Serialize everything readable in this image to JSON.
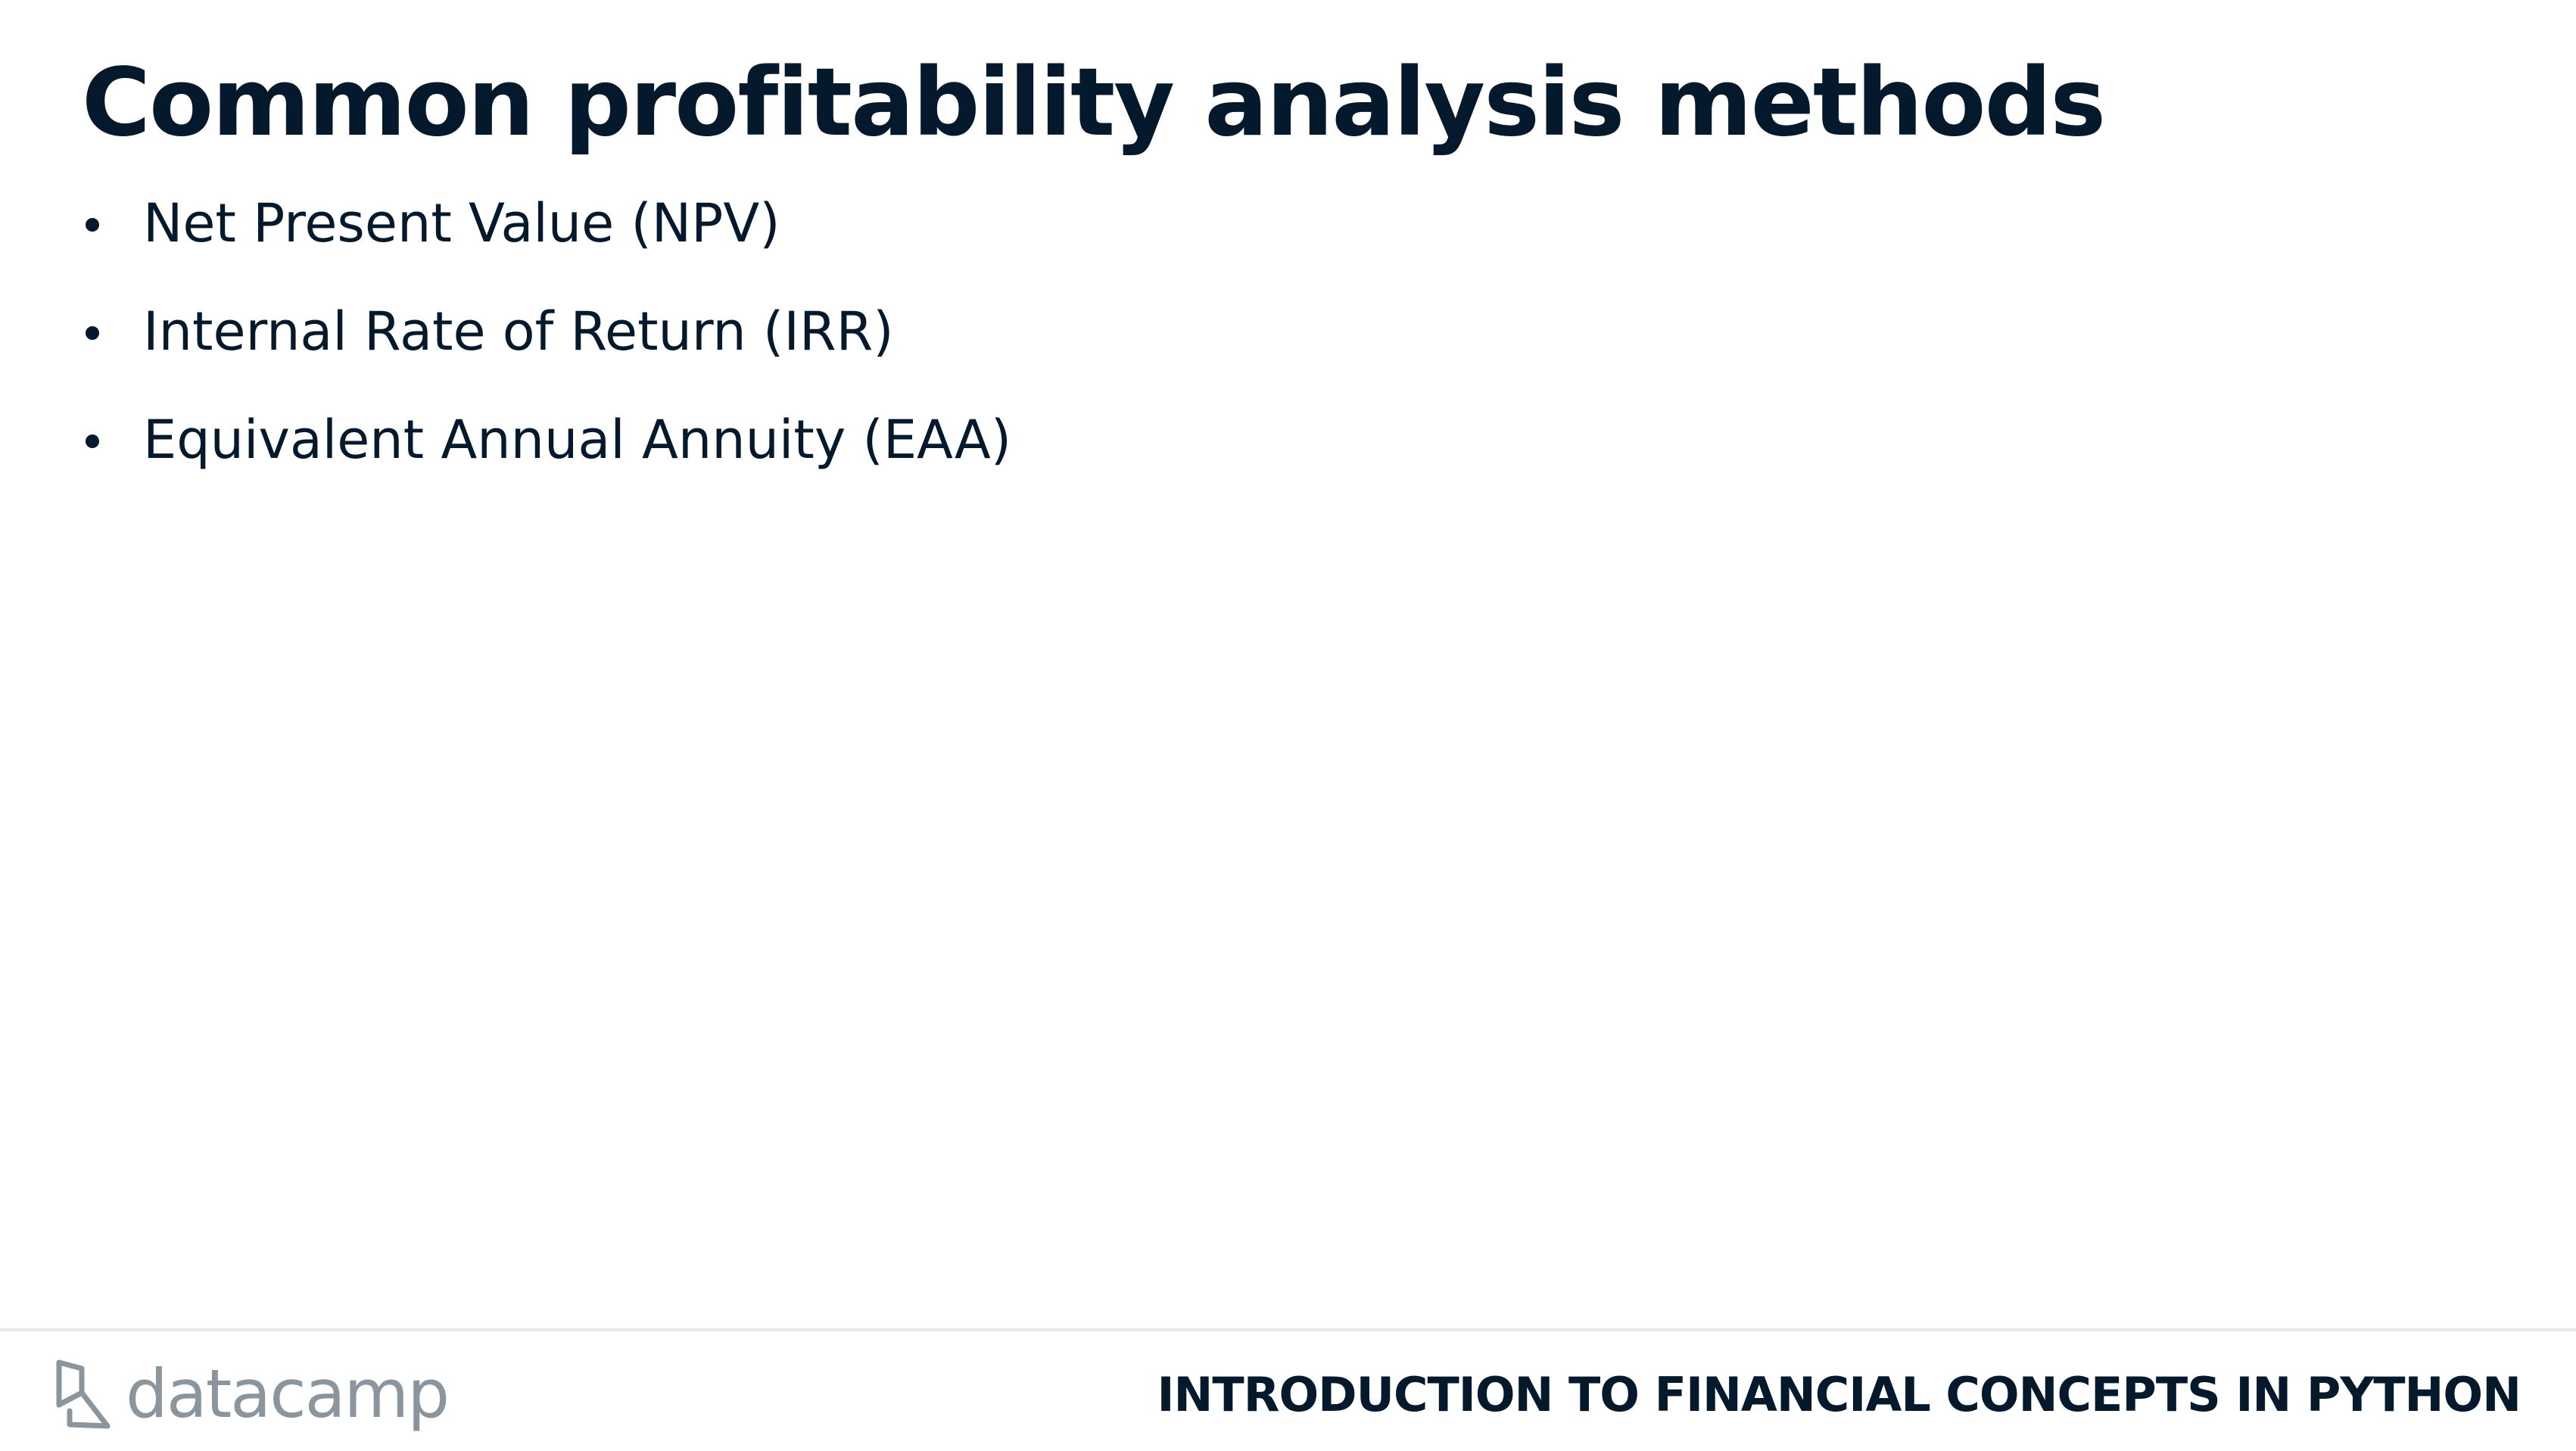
{
  "slide": {
    "title": "Common profitability analysis methods",
    "bullets": [
      "Net Present Value (NPV)",
      "Internal Rate of Return (IRR)",
      "Equivalent Annual Annuity (EAA)"
    ]
  },
  "footer": {
    "logo_text": "datacamp",
    "logo_icon": "datacamp-logo-icon",
    "course_title": "INTRODUCTION TO FINANCIAL CONCEPTS IN PYTHON"
  },
  "colors": {
    "text": "#05192d",
    "logo": "#8a959d",
    "divider": "#e3e5e8",
    "background": "#ffffff"
  }
}
